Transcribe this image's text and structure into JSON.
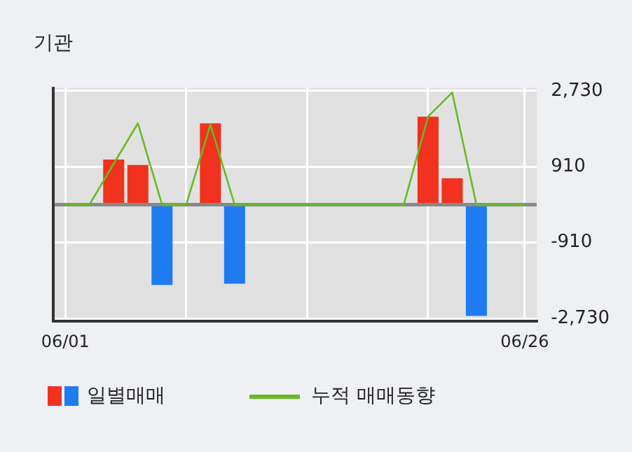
{
  "chart_data": {
    "type": "bar",
    "title": "기관",
    "categories": [
      "06/01",
      null,
      null,
      null,
      null,
      null,
      null,
      null,
      null,
      null,
      null,
      null,
      null,
      null,
      null,
      null,
      null,
      null,
      null,
      "06/26"
    ],
    "series": [
      {
        "name": "일별매매",
        "values": [
          0,
          0,
          1080,
          950,
          -1930,
          0,
          1950,
          -1900,
          0,
          0,
          0,
          0,
          0,
          0,
          0,
          2110,
          630,
          -2670,
          0,
          0
        ],
        "colors": [
          "#1e7bf0",
          "#1e7bf0",
          "#f0321e",
          "#f0321e",
          "#1e7bf0",
          "#1e7bf0",
          "#f0321e",
          "#1e7bf0",
          "#1e7bf0",
          "#1e7bf0",
          "#1e7bf0",
          "#1e7bf0",
          "#1e7bf0",
          "#1e7bf0",
          "#1e7bf0",
          "#f0321e",
          "#f0321e",
          "#1e7bf0",
          "#1e7bf0",
          "#1e7bf0"
        ]
      },
      {
        "name": "누적 매매동향",
        "type": "line",
        "color": "#66bb22",
        "values": [
          0,
          0,
          980,
          1950,
          0,
          0,
          1920,
          0,
          0,
          0,
          0,
          0,
          0,
          0,
          0,
          2110,
          2690,
          0,
          0,
          0
        ]
      }
    ],
    "ylim": [
      -2800,
      2800
    ],
    "yticks": [
      {
        "value": -2730,
        "label": "-2,730"
      },
      {
        "value": -910,
        "label": "-910"
      },
      {
        "value": 0,
        "label": null
      },
      {
        "value": 910,
        "label": "910"
      },
      {
        "value": 2730,
        "label": "2,730"
      }
    ],
    "grid": true,
    "legend": "bottom",
    "marker": "none"
  }
}
